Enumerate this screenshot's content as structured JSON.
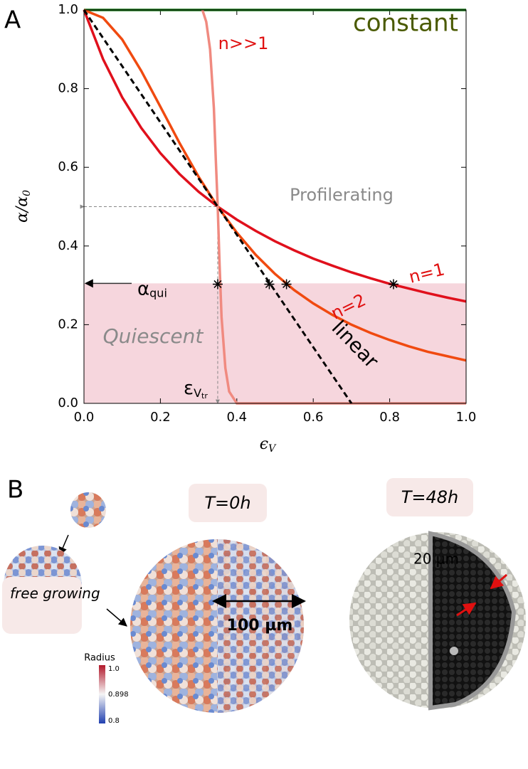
{
  "chart_data": {
    "type": "line",
    "panel_label": "A",
    "ylabel": {
      "symbol": "α/α",
      "sub": "0"
    },
    "xlabel": {
      "symbol": "ϵ",
      "sub": "V"
    },
    "xlim": [
      0,
      1
    ],
    "ylim": [
      0,
      1
    ],
    "xticks": [
      {
        "value": 0,
        "label": "0.0"
      },
      {
        "value": 0.2,
        "label": "0.2"
      },
      {
        "value": 0.4,
        "label": "0.4"
      },
      {
        "value": 0.6,
        "label": "0.6"
      },
      {
        "value": 0.8,
        "label": "0.8"
      },
      {
        "value": 1,
        "label": "1.0"
      }
    ],
    "yticks": [
      {
        "value": 0,
        "label": "0.0"
      },
      {
        "value": 0.2,
        "label": "0.2"
      },
      {
        "value": 0.4,
        "label": "0.4"
      },
      {
        "value": 0.6,
        "label": "0.6"
      },
      {
        "value": 0.8,
        "label": "0.8"
      },
      {
        "value": 1,
        "label": "1.0"
      }
    ],
    "series": [
      {
        "name": "constant",
        "color": "#1a7a1a",
        "x": [
          0,
          1
        ],
        "values": [
          1,
          1
        ]
      },
      {
        "name": "n=1",
        "color": "#e0101c",
        "x": [
          0,
          0.05,
          0.1,
          0.15,
          0.2,
          0.25,
          0.3,
          0.35,
          0.4,
          0.45,
          0.5,
          0.55,
          0.6,
          0.65,
          0.7,
          0.75,
          0.8,
          0.85,
          0.9,
          0.95,
          1
        ],
        "values": [
          1,
          0.875,
          0.778,
          0.7,
          0.636,
          0.583,
          0.538,
          0.5,
          0.467,
          0.438,
          0.412,
          0.389,
          0.368,
          0.35,
          0.333,
          0.318,
          0.304,
          0.292,
          0.28,
          0.269,
          0.259
        ]
      },
      {
        "name": "n=2",
        "color": "#f04a10",
        "x": [
          0,
          0.05,
          0.1,
          0.15,
          0.2,
          0.25,
          0.3,
          0.35,
          0.4,
          0.45,
          0.5,
          0.55,
          0.6,
          0.65,
          0.7,
          0.75,
          0.8,
          0.85,
          0.9,
          0.95,
          1
        ],
        "values": [
          1,
          0.98,
          0.925,
          0.845,
          0.754,
          0.662,
          0.576,
          0.5,
          0.434,
          0.377,
          0.329,
          0.288,
          0.254,
          0.225,
          0.2,
          0.179,
          0.161,
          0.145,
          0.131,
          0.12,
          0.109
        ]
      },
      {
        "name": "n>>1",
        "color": "#f08a80",
        "x": [
          0.31,
          0.32,
          0.33,
          0.34,
          0.345,
          0.35,
          0.355,
          0.36,
          0.37,
          0.38,
          0.4,
          1
        ],
        "values": [
          1,
          0.97,
          0.9,
          0.75,
          0.62,
          0.5,
          0.35,
          0.22,
          0.09,
          0.03,
          0,
          0
        ]
      },
      {
        "name": "linear",
        "color": "#000000",
        "dash": true,
        "x": [
          0,
          0.7
        ],
        "values": [
          1,
          0
        ]
      }
    ],
    "region": {
      "name": "Quiescent",
      "values": [
        0,
        0.305
      ],
      "color": "#f2c4cf"
    },
    "region_label": "Profilerating",
    "threshold": {
      "symbol": "α",
      "sub": "qui"
    },
    "transition": {
      "x": 0.35,
      "y": 0.5,
      "symbol": "ε",
      "sub": "V",
      "subsub": "tr"
    },
    "stars": {
      "x": [
        0.35,
        0.485,
        0.53,
        0.81
      ],
      "values": [
        0.303,
        0.303,
        0.303,
        0.303
      ]
    }
  },
  "panel_b": {
    "label": "B",
    "time_0": "T=0h",
    "time_48": "T=48h",
    "free": "free growing",
    "scale_100": "100 µm",
    "scale_20": "20 µm",
    "colorbar": {
      "title": "Radius",
      "labels": [
        "1.0",
        "0.898",
        "0.8"
      ]
    }
  }
}
